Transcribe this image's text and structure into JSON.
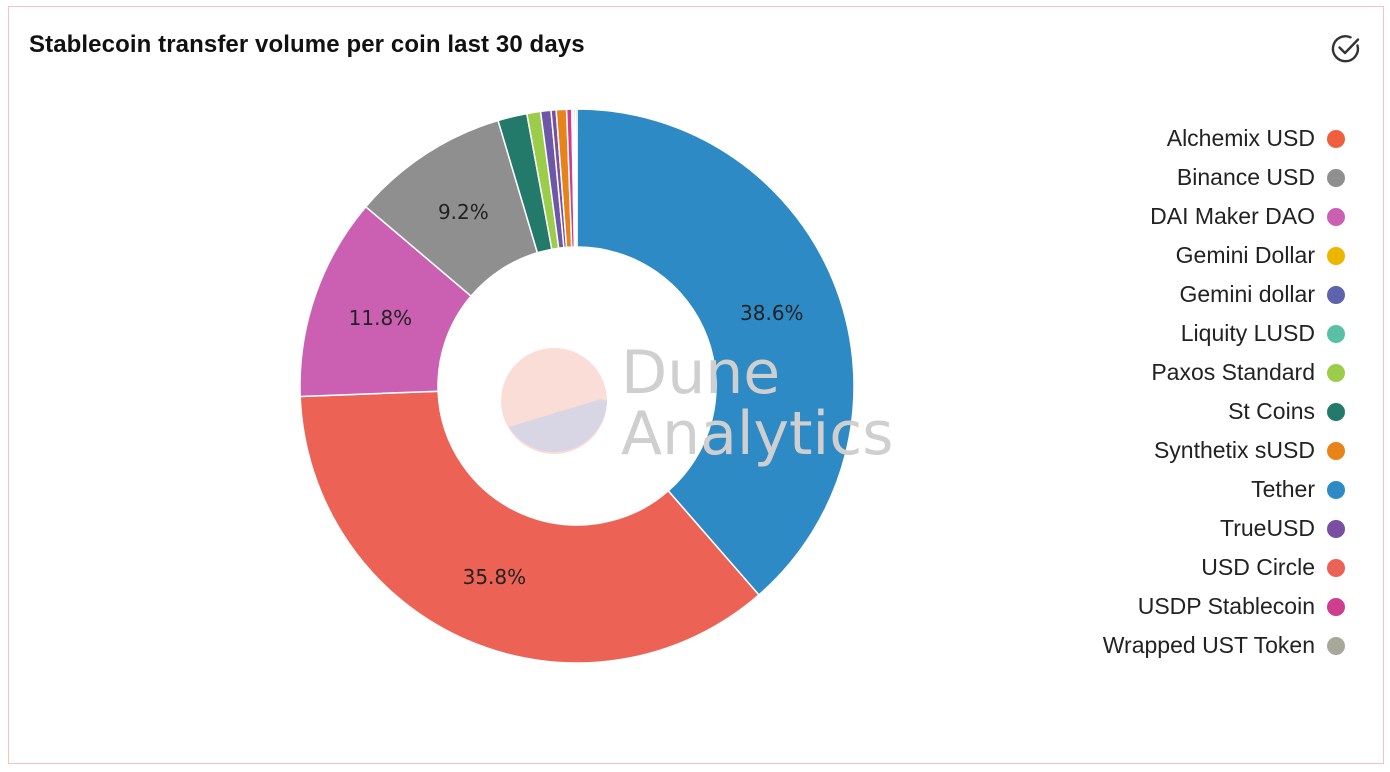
{
  "card": {
    "title": "Stablecoin transfer volume per coin last 30 days",
    "check_icon": "check-circle-icon"
  },
  "watermark": {
    "line1": "Dune",
    "line2": "Analytics"
  },
  "chart_data": {
    "type": "pie",
    "title": "Stablecoin transfer volume per coin last 30 days",
    "donut": true,
    "legend_position": "right",
    "slices": [
      {
        "name": "Tether",
        "value": 38.6,
        "color": "#2e8ac4",
        "label": "38.6%"
      },
      {
        "name": "USD Circle",
        "value": 35.8,
        "color": "#ec6356",
        "label": "35.8%"
      },
      {
        "name": "DAI Maker DAO",
        "value": 11.8,
        "color": "#cb60b2",
        "label": "11.8%"
      },
      {
        "name": "Binance USD",
        "value": 9.2,
        "color": "#8f8f8f",
        "label": "9.2%"
      },
      {
        "name": "St Coins",
        "value": 1.7,
        "color": "#237a6b",
        "label": ""
      },
      {
        "name": "Paxos Standard",
        "value": 0.8,
        "color": "#9ccd4a",
        "label": ""
      },
      {
        "name": "Gemini dollar",
        "value": 0.6,
        "color": "#6c57a8",
        "label": ""
      },
      {
        "name": "TrueUSD",
        "value": 0.3,
        "color": "#7a4fa3",
        "label": ""
      },
      {
        "name": "Synthetix sUSD",
        "value": 0.6,
        "color": "#e6841a",
        "label": ""
      },
      {
        "name": "USDP Stablecoin",
        "value": 0.3,
        "color": "#cf3d8f",
        "label": ""
      },
      {
        "name": "Liquity LUSD",
        "value": 0.1,
        "color": "#58c0a4",
        "label": ""
      },
      {
        "name": "Alchemix USD",
        "value": 0.1,
        "color": "#ef5e3e",
        "label": ""
      },
      {
        "name": "Wrapped UST Token",
        "value": 0.1,
        "color": "#a8a89a",
        "label": ""
      }
    ]
  },
  "legend": {
    "items": [
      {
        "label": "Alchemix USD",
        "color": "#ef5e3e"
      },
      {
        "label": "Binance USD",
        "color": "#8f8f8f"
      },
      {
        "label": "DAI Maker DAO",
        "color": "#cb60b2"
      },
      {
        "label": "Gemini Dollar",
        "color": "#eeb500"
      },
      {
        "label": "Gemini dollar",
        "color": "#5d64ad"
      },
      {
        "label": "Liquity LUSD",
        "color": "#58c0a4"
      },
      {
        "label": "Paxos Standard",
        "color": "#9ccd4a"
      },
      {
        "label": "St Coins",
        "color": "#237a6b"
      },
      {
        "label": "Synthetix sUSD",
        "color": "#e6841a"
      },
      {
        "label": "Tether",
        "color": "#2e8ac4"
      },
      {
        "label": "TrueUSD",
        "color": "#7a4fa3"
      },
      {
        "label": "USD Circle",
        "color": "#ec6356"
      },
      {
        "label": "USDP Stablecoin",
        "color": "#cf3d8f"
      },
      {
        "label": "Wrapped UST Token",
        "color": "#a8a89a"
      }
    ]
  }
}
